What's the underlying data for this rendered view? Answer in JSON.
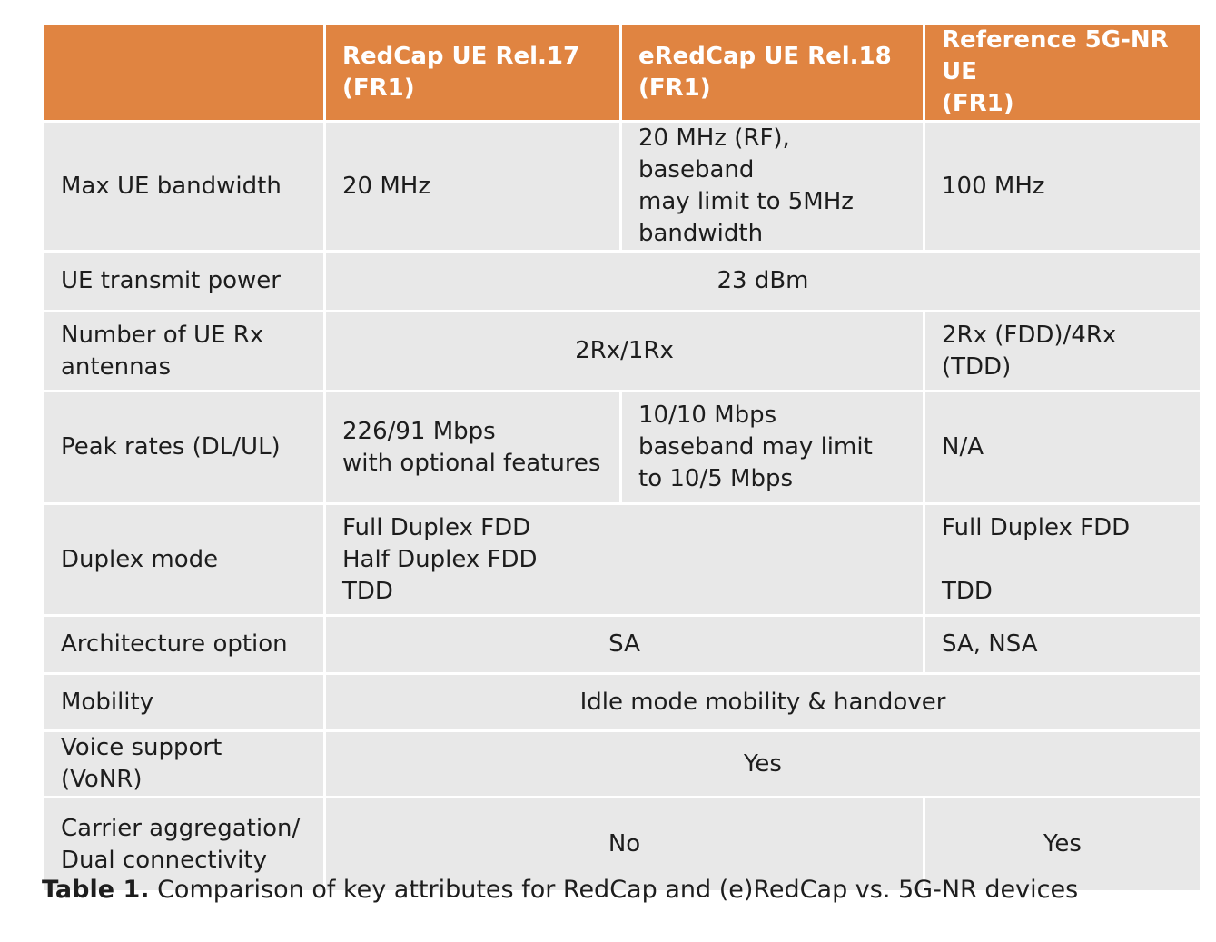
{
  "table": {
    "headers": [
      "",
      "RedCap UE Rel.17\n(FR1)",
      "eRedCap UE Rel.18\n(FR1)",
      "Reference 5G-NR UE\n(FR1)"
    ],
    "rows": {
      "max_bandwidth": {
        "label": "Max UE bandwidth",
        "redcap": "20 MHz",
        "eredcap": "20 MHz (RF), baseband\nmay limit to 5MHz\nbandwidth",
        "reference": "100 MHz"
      },
      "transmit_power": {
        "label": "UE transmit power",
        "all": "23 dBm"
      },
      "rx_antennas": {
        "label": "Number of UE Rx\nantennas",
        "redcap_eredcap": "2Rx/1Rx",
        "reference": "2Rx (FDD)/4Rx (TDD)"
      },
      "peak_rates": {
        "label": "Peak rates (DL/UL)",
        "redcap": "226/91 Mbps\nwith optional features",
        "eredcap": "10/10 Mbps\nbaseband may limit\nto 10/5 Mbps",
        "reference": "N/A"
      },
      "duplex_mode": {
        "label": "Duplex mode",
        "redcap_eredcap": "Full Duplex FDD\nHalf Duplex FDD\nTDD",
        "reference": "Full Duplex FDD\n\nTDD"
      },
      "architecture": {
        "label": "Architecture option",
        "redcap_eredcap": "SA",
        "reference": "SA, NSA"
      },
      "mobility": {
        "label": "Mobility",
        "all": "Idle mode mobility & handover"
      },
      "voice": {
        "label": "Voice support (VoNR)",
        "all": "Yes"
      },
      "carrier_aggregation": {
        "label": "Carrier aggregation/\nDual connectivity",
        "redcap_eredcap": "No",
        "reference": "Yes"
      }
    }
  },
  "caption": {
    "label": "Table 1.",
    "text": " Comparison of key attributes for RedCap and (e)RedCap vs. 5G-NR devices"
  },
  "colors": {
    "header_background": "#e08441",
    "cell_background": "#e8e8e8",
    "border": "#ffffff"
  }
}
